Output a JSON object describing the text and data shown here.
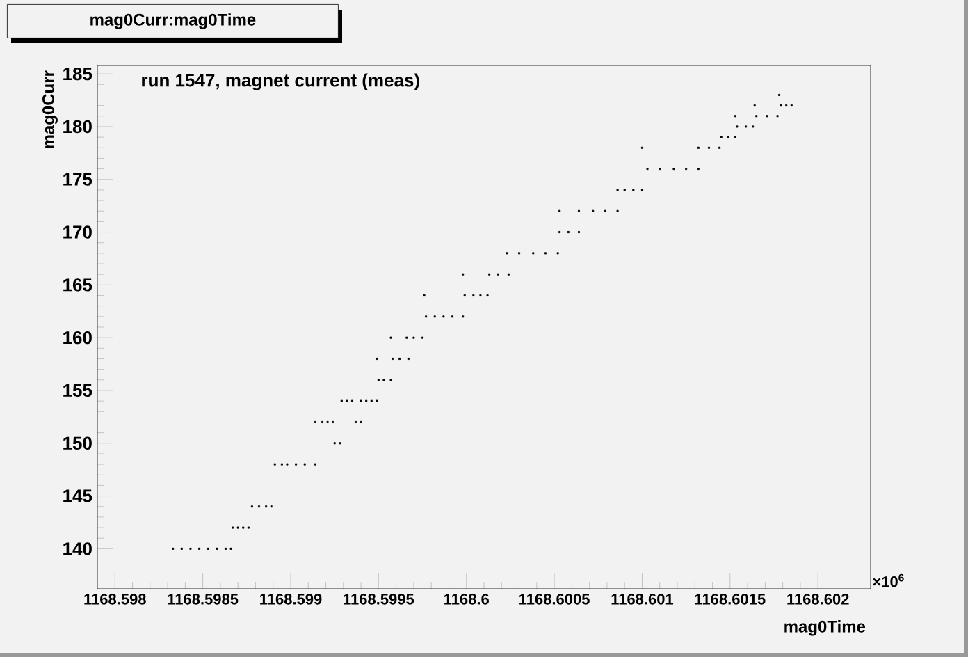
{
  "chart_data": {
    "type": "scatter",
    "title": "mag0Curr:mag0Time",
    "annotations": [
      "run 1547, magnet current (meas)",
      "×10$^{6}$"
    ],
    "xlabel": "mag0Time",
    "ylabel": "mag0Curr",
    "color": "#000000",
    "marker": "square",
    "xlim": [
      1168.5979,
      1168.6023
    ],
    "ylim": [
      136.2,
      185.8
    ],
    "xticks": [
      1168.598,
      1168.5985,
      1168.599,
      1168.5995,
      1168.6,
      1168.6005,
      1168.601,
      1168.6015,
      1168.602
    ],
    "yticks": [
      140,
      145,
      150,
      155,
      160,
      165,
      170,
      175,
      180,
      185
    ],
    "x": [
      1168.59833,
      1168.59838,
      1168.59843,
      1168.59848,
      1168.59853,
      1168.59858,
      1168.59863,
      1168.59866,
      1168.59867,
      1168.5987,
      1168.59873,
      1168.59876,
      1168.59878,
      1168.59882,
      1168.59886,
      1168.59889,
      1168.59891,
      1168.59895,
      1168.59898,
      1168.59903,
      1168.59908,
      1168.59914,
      1168.59914,
      1168.59918,
      1168.59921,
      1168.59924,
      1168.59925,
      1168.59928,
      1168.59929,
      1168.59932,
      1168.59935,
      1168.59937,
      1168.5994,
      1168.5994,
      1168.59943,
      1168.59946,
      1168.59949,
      1168.59949,
      1168.5995,
      1168.59953,
      1168.59957,
      1168.59957,
      1168.59958,
      1168.59962,
      1168.59967,
      1168.59966,
      1168.5997,
      1168.59975,
      1168.59976,
      1168.59977,
      1168.59982,
      1168.59987,
      1168.59992,
      1168.59998,
      1168.59998,
      1168.59999,
      1168.60004,
      1168.60008,
      1168.60012,
      1168.60013,
      1168.60018,
      1168.60024,
      1168.60023,
      1168.6003,
      1168.60038,
      1168.60045,
      1168.60052,
      1168.60053,
      1168.60058,
      1168.60064,
      1168.60053,
      1168.60064,
      1168.60072,
      1168.60079,
      1168.60086,
      1168.60086,
      1168.6009,
      1168.60095,
      1168.601,
      1168.601,
      1168.60103,
      1168.6011,
      1168.60118,
      1168.60125,
      1168.60132,
      1168.60132,
      1168.60138,
      1168.60144,
      1168.60145,
      1168.60149,
      1168.60153,
      1168.60153,
      1168.60154,
      1168.60159,
      1168.60163,
      1168.60164,
      1168.60165,
      1168.60171,
      1168.60177,
      1168.60178,
      1168.60179,
      1168.60182,
      1168.60185
    ],
    "values": [
      140,
      140,
      140,
      140,
      140,
      140,
      140,
      140,
      142,
      142,
      142,
      142,
      144,
      144,
      144,
      144,
      148,
      148,
      148,
      148,
      148,
      148,
      152,
      152,
      152,
      152,
      150,
      150,
      154,
      154,
      154,
      152,
      152,
      154,
      154,
      154,
      154,
      158,
      156,
      156,
      156,
      160,
      158,
      158,
      158,
      160,
      160,
      160,
      164,
      162,
      162,
      162,
      162,
      162,
      166,
      164,
      164,
      164,
      164,
      166,
      166,
      166,
      168,
      168,
      168,
      168,
      168,
      170,
      170,
      170,
      172,
      172,
      172,
      172,
      172,
      174,
      174,
      174,
      174,
      178,
      176,
      176,
      176,
      176,
      176,
      178,
      178,
      178,
      179,
      179,
      179,
      181,
      180,
      180,
      180,
      182,
      181,
      181,
      181,
      183,
      182,
      182,
      182
    ]
  }
}
